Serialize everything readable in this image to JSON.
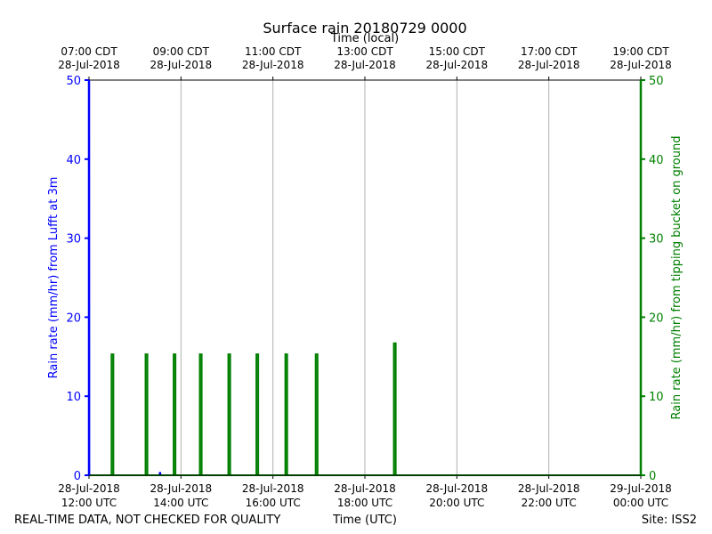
{
  "chart_data": {
    "type": "line",
    "title": "Surface rain 20180729 0000",
    "top_axis_label": "Time (local)",
    "xlabel": "Time (UTC)",
    "ylabel_left": "Rain rate (mm/hr) from Lufft at 3m",
    "ylabel_right": "Rain rate (mm/hr) from tipping bucket on ground",
    "ylim": [
      0,
      50
    ],
    "xlim_utc_hours": [
      12,
      24
    ],
    "yticks": [
      0,
      10,
      20,
      30,
      40,
      50
    ],
    "grid": true,
    "bottom_ticks": [
      {
        "hour": 12,
        "line1": "28-Jul-2018",
        "line2": "12:00 UTC"
      },
      {
        "hour": 14,
        "line1": "28-Jul-2018",
        "line2": "14:00 UTC"
      },
      {
        "hour": 16,
        "line1": "28-Jul-2018",
        "line2": "16:00 UTC"
      },
      {
        "hour": 18,
        "line1": "28-Jul-2018",
        "line2": "18:00 UTC"
      },
      {
        "hour": 20,
        "line1": "28-Jul-2018",
        "line2": "20:00 UTC"
      },
      {
        "hour": 22,
        "line1": "28-Jul-2018",
        "line2": "22:00 UTC"
      },
      {
        "hour": 24,
        "line1": "29-Jul-2018",
        "line2": "00:00 UTC"
      }
    ],
    "top_ticks": [
      {
        "hour": 12,
        "line1": "07:00 CDT",
        "line2": "28-Jul-2018"
      },
      {
        "hour": 14,
        "line1": "09:00 CDT",
        "line2": "28-Jul-2018"
      },
      {
        "hour": 16,
        "line1": "11:00 CDT",
        "line2": "28-Jul-2018"
      },
      {
        "hour": 18,
        "line1": "13:00 CDT",
        "line2": "28-Jul-2018"
      },
      {
        "hour": 20,
        "line1": "15:00 CDT",
        "line2": "28-Jul-2018"
      },
      {
        "hour": 22,
        "line1": "17:00 CDT",
        "line2": "28-Jul-2018"
      },
      {
        "hour": 24,
        "line1": "19:00 CDT",
        "line2": "28-Jul-2018"
      }
    ],
    "series": [
      {
        "axis": "left",
        "color": "#0000ff",
        "points": [
          [
            12.0,
            50
          ],
          [
            12.005,
            0
          ],
          [
            13.53,
            0
          ],
          [
            13.545,
            0.4
          ],
          [
            13.56,
            0
          ],
          [
            24,
            0
          ]
        ]
      },
      {
        "axis": "right",
        "color": "#008000",
        "spike_width_h": 0.04,
        "baseline": 0,
        "spikes": [
          [
            12.51,
            15.3
          ],
          [
            13.25,
            15.3
          ],
          [
            13.86,
            15.3
          ],
          [
            14.43,
            15.3
          ],
          [
            15.05,
            15.3
          ],
          [
            15.66,
            15.3
          ],
          [
            16.29,
            15.3
          ],
          [
            16.95,
            15.3
          ],
          [
            18.65,
            16.7
          ]
        ]
      }
    ]
  },
  "footer": {
    "disclaimer": "REAL-TIME DATA, NOT CHECKED FOR QUALITY",
    "site": "Site: ISS2"
  }
}
